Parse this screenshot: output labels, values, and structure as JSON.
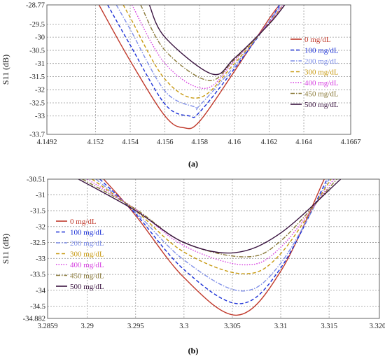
{
  "chart_data": [
    {
      "type": "line",
      "caption": "(a)",
      "title": "",
      "xlabel": "",
      "ylabel": "S11 (dB)",
      "xlim": [
        4.1492,
        4.1667
      ],
      "ylim": [
        -33.7,
        -28.77
      ],
      "xticks": [
        "4.1492",
        "4.152",
        "4.154",
        "4.156",
        "4.158",
        "4.16",
        "4.162",
        "4.164",
        "4.1667"
      ],
      "yticks": [
        "-28.77",
        "-29.5",
        "-30",
        "-30.5",
        "-31",
        "-31.5",
        "-32",
        "-32.5",
        "-33",
        "-33.7"
      ],
      "grid": true,
      "legend_position": "right",
      "series": [
        {
          "name": "0 mg/dL",
          "color": "#c0392b",
          "dash": "solid",
          "x": [
            4.1522,
            4.154,
            4.156,
            4.1571,
            4.158,
            4.16,
            4.162,
            4.1626
          ],
          "y": [
            -28.77,
            -30.9,
            -33.0,
            -33.45,
            -33.2,
            -31.3,
            -29.3,
            -28.77
          ]
        },
        {
          "name": "100 mg/dL",
          "color": "#1a2fd6",
          "dash": "dash",
          "x": [
            4.1527,
            4.154,
            4.156,
            4.1574,
            4.158,
            4.16,
            4.162,
            4.1626
          ],
          "y": [
            -28.77,
            -30.3,
            -32.55,
            -33.0,
            -32.85,
            -31.2,
            -29.4,
            -28.77
          ]
        },
        {
          "name": "200 mg/dL",
          "color": "#7f8fe8",
          "dash": "dashdot",
          "x": [
            4.1532,
            4.154,
            4.156,
            4.1577,
            4.158,
            4.16,
            4.162,
            4.1627
          ],
          "y": [
            -28.77,
            -29.7,
            -32.05,
            -32.65,
            -32.6,
            -31.1,
            -29.4,
            -28.77
          ]
        },
        {
          "name": "300 mg/dL",
          "color": "#c89a12",
          "dash": "dash",
          "x": [
            4.1536,
            4.154,
            4.156,
            4.158,
            4.16,
            4.162,
            4.1628
          ],
          "y": [
            -28.77,
            -29.25,
            -31.6,
            -32.3,
            -31.0,
            -29.45,
            -28.77
          ]
        },
        {
          "name": "400 mg/dL",
          "color": "#d63ee0",
          "dash": "dot",
          "x": [
            4.1541,
            4.156,
            4.1583,
            4.16,
            4.162,
            4.1628
          ],
          "y": [
            -28.77,
            -31.0,
            -31.95,
            -30.9,
            -29.45,
            -28.77
          ]
        },
        {
          "name": "450 mg/dL",
          "color": "#8a7a3a",
          "dash": "dashdot",
          "x": [
            4.1546,
            4.156,
            4.1585,
            4.16,
            4.162,
            4.1629
          ],
          "y": [
            -28.77,
            -30.5,
            -31.65,
            -30.85,
            -29.5,
            -28.77
          ]
        },
        {
          "name": "500 mg/dL",
          "color": "#3a1440",
          "dash": "solid",
          "x": [
            4.1551,
            4.156,
            4.1587,
            4.16,
            4.162,
            4.1629
          ],
          "y": [
            -28.77,
            -30.0,
            -31.4,
            -30.8,
            -29.5,
            -28.77
          ]
        }
      ]
    },
    {
      "type": "line",
      "caption": "(b)",
      "title": "",
      "xlabel": "",
      "ylabel": "S11 (dB)",
      "xlim": [
        3.2859,
        3.3202
      ],
      "ylim": [
        -34.882,
        -30.51
      ],
      "xticks": [
        "3.2859",
        "3.29",
        "3.295",
        "3.3",
        "3.305",
        "3.31",
        "3.315",
        "3.3202"
      ],
      "yticks": [
        "-30.51",
        "-31",
        "-31.5",
        "-32",
        "-32.5",
        "-33",
        "-33.5",
        "-34",
        "-34.5",
        "-34.882"
      ],
      "grid": true,
      "legend_position": "left",
      "series": [
        {
          "name": "0 mg/dL",
          "color": "#c0392b",
          "dash": "solid",
          "x": [
            3.2917,
            3.295,
            3.3,
            3.3055,
            3.31,
            3.3145
          ],
          "y": [
            -30.51,
            -31.65,
            -33.6,
            -34.78,
            -33.4,
            -30.51
          ]
        },
        {
          "name": "100 mg/dL",
          "color": "#1a2fd6",
          "dash": "dash",
          "x": [
            3.2913,
            3.295,
            3.3,
            3.3057,
            3.31,
            3.3148
          ],
          "y": [
            -30.51,
            -31.6,
            -33.35,
            -34.42,
            -33.3,
            -30.51
          ]
        },
        {
          "name": "200 mg/dL",
          "color": "#7f8fe8",
          "dash": "dashdot",
          "x": [
            3.2909,
            3.295,
            3.3,
            3.3059,
            3.31,
            3.315
          ],
          "y": [
            -30.51,
            -31.55,
            -33.05,
            -34.02,
            -33.15,
            -30.51
          ]
        },
        {
          "name": "300 mg/dL",
          "color": "#c89a12",
          "dash": "dash",
          "x": [
            3.2905,
            3.295,
            3.3,
            3.3061,
            3.31,
            3.3152
          ],
          "y": [
            -30.51,
            -31.5,
            -32.8,
            -33.48,
            -32.85,
            -30.51
          ]
        },
        {
          "name": "400 mg/dL",
          "color": "#d63ee0",
          "dash": "dot",
          "x": [
            3.29,
            3.295,
            3.3,
            3.3062,
            3.31,
            3.3155
          ],
          "y": [
            -30.51,
            -31.45,
            -32.6,
            -33.2,
            -32.65,
            -30.51
          ]
        },
        {
          "name": "450 mg/dL",
          "color": "#8a7a3a",
          "dash": "dashdot",
          "x": [
            3.2895,
            3.295,
            3.3,
            3.3063,
            3.31,
            3.3158
          ],
          "y": [
            -30.51,
            -31.45,
            -32.5,
            -32.95,
            -32.45,
            -30.51
          ]
        },
        {
          "name": "500 mg/dL",
          "color": "#3a1440",
          "dash": "solid",
          "x": [
            3.2891,
            3.295,
            3.3,
            3.3052,
            3.31,
            3.3162
          ],
          "y": [
            -30.51,
            -31.5,
            -32.5,
            -32.82,
            -32.2,
            -30.51
          ]
        }
      ]
    }
  ]
}
